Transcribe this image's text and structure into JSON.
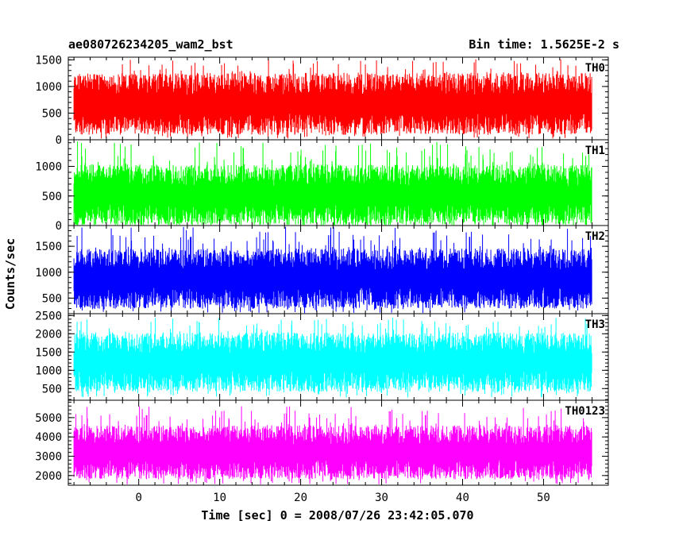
{
  "header": {
    "title": "ae080726234205_wam2_bst",
    "bin_time": "Bin time: 1.5625E-2 s"
  },
  "chart_data": {
    "type": "line",
    "xlabel": "Time [sec] 0 = 2008/07/26 23:42:05.070",
    "ylabel": "Counts/sec",
    "xlim": [
      -8.7,
      58.0
    ],
    "data_xrange": [
      -8.0,
      56.0
    ],
    "bin_time_sec": 0.015625,
    "x_ticks": [
      0,
      10,
      20,
      30,
      40,
      50
    ],
    "x_tick_labels": [
      "0",
      "10",
      "20",
      "30",
      "40",
      "50"
    ],
    "grid": false,
    "panels": [
      {
        "name": "TH0",
        "color": "#ff0000",
        "ylim": [
          0,
          1550
        ],
        "y_ticks": [
          0,
          500,
          1000,
          1500
        ],
        "y_tick_labels": [
          "0",
          "500",
          "1000",
          "1500"
        ],
        "envelope": {
          "typical_low": 300,
          "typical_high": 1050,
          "min": 20,
          "max": 1520
        }
      },
      {
        "name": "TH1",
        "color": "#00ff00",
        "ylim": [
          0,
          1450
        ],
        "y_ticks": [
          0,
          500,
          1000
        ],
        "y_tick_labels": [
          "0",
          "500",
          "1000"
        ],
        "envelope": {
          "typical_low": 180,
          "typical_high": 850,
          "min": 10,
          "max": 1420
        }
      },
      {
        "name": "TH2",
        "color": "#0000ff",
        "ylim": [
          200,
          1900
        ],
        "y_ticks": [
          500,
          1000,
          1500
        ],
        "y_tick_labels": [
          "500",
          "1000",
          "1500"
        ],
        "envelope": {
          "typical_low": 500,
          "typical_high": 1250,
          "min": 210,
          "max": 1880
        }
      },
      {
        "name": "TH3",
        "color": "#00ffff",
        "ylim": [
          180,
          2550
        ],
        "y_ticks": [
          500,
          1000,
          1500,
          2000,
          2500
        ],
        "y_tick_labels": [
          "500",
          "1000",
          "1500",
          "2000",
          "2500"
        ],
        "envelope": {
          "typical_low": 700,
          "typical_high": 1750,
          "min": 250,
          "max": 2450
        }
      },
      {
        "name": "TH0123",
        "color": "#ff00ff",
        "ylim": [
          1500,
          5900
        ],
        "y_ticks": [
          2000,
          3000,
          4000,
          5000
        ],
        "y_tick_labels": [
          "2000",
          "3000",
          "4000",
          "5000"
        ],
        "envelope": {
          "typical_low": 2300,
          "typical_high": 4100,
          "min": 1550,
          "max": 5600
        }
      }
    ]
  }
}
